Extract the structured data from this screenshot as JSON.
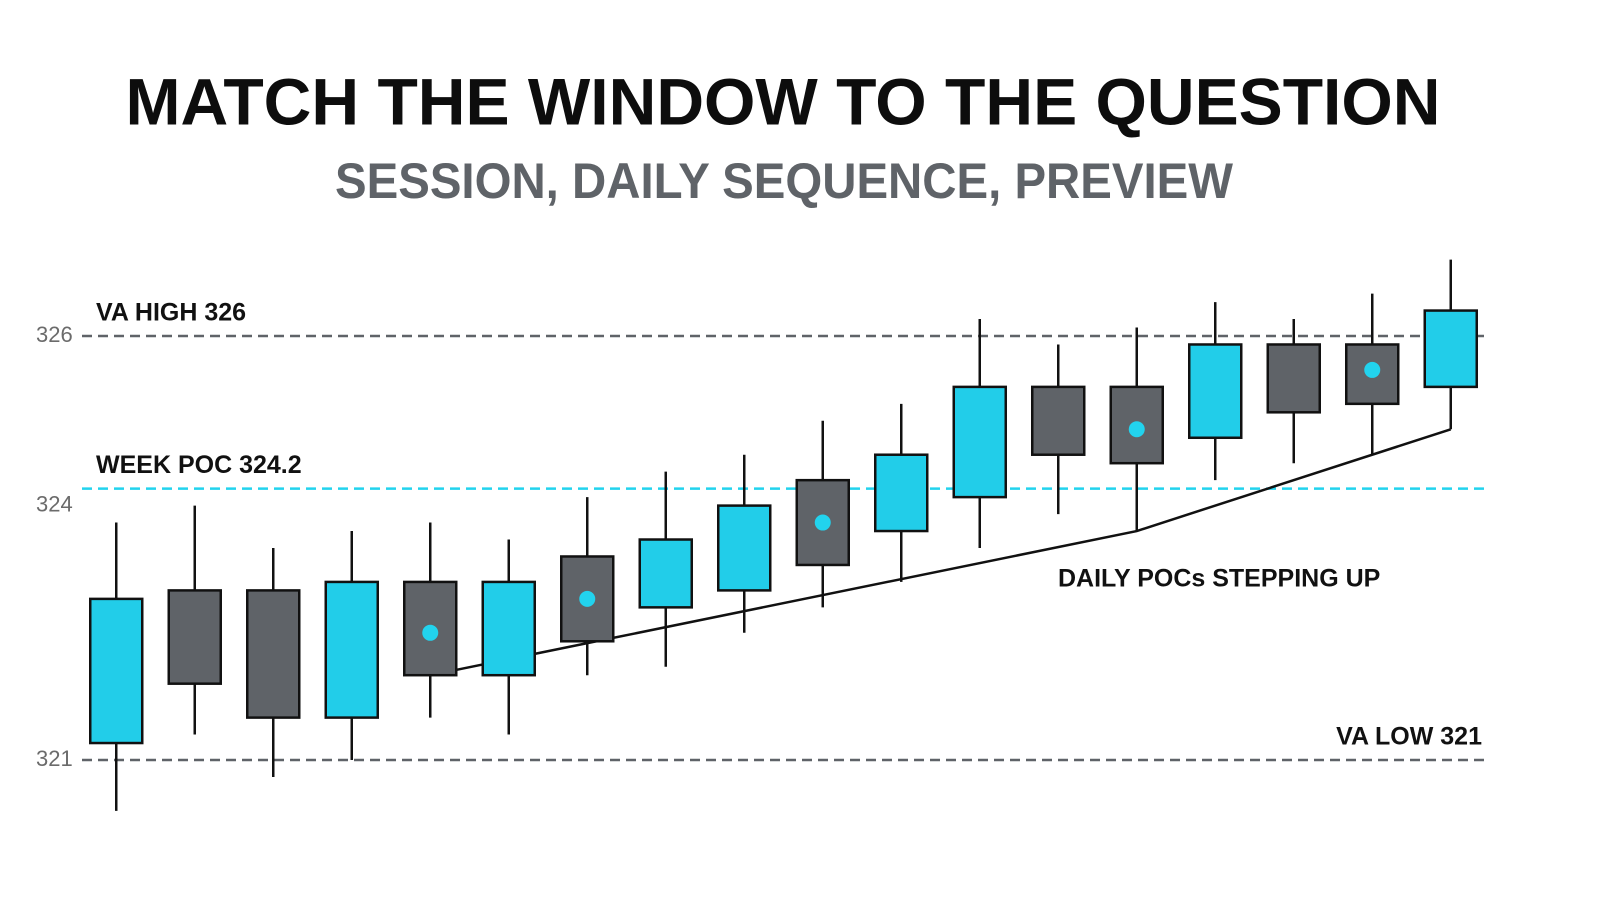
{
  "chart_data": {
    "type": "candlestick",
    "title": "MATCH THE WINDOW TO THE QUESTION",
    "subtitle": "SESSION, DAILY SEQUENCE, PREVIEW",
    "categories": [
      null,
      null,
      null,
      null,
      null,
      null,
      null,
      null,
      null,
      null,
      null,
      null,
      null,
      null,
      null,
      null,
      null,
      null
    ],
    "open": [
      321.2,
      323.0,
      323.0,
      321.5,
      323.1,
      322.0,
      323.4,
      322.8,
      323.0,
      324.3,
      323.7,
      324.1,
      325.4,
      325.4,
      324.8,
      325.9,
      325.9,
      325.4
    ],
    "high": [
      323.8,
      324.0,
      323.5,
      323.7,
      323.8,
      323.6,
      324.1,
      324.4,
      324.6,
      325.0,
      325.2,
      326.2,
      325.9,
      326.1,
      326.4,
      326.2,
      326.5,
      326.9
    ],
    "low": [
      320.4,
      321.3,
      320.8,
      321.0,
      321.5,
      321.3,
      322.0,
      322.1,
      322.5,
      322.8,
      323.1,
      323.5,
      323.9,
      323.7,
      324.3,
      324.5,
      324.6,
      324.9
    ],
    "close": [
      322.9,
      321.9,
      321.5,
      323.1,
      322.0,
      323.1,
      322.4,
      323.6,
      324.0,
      323.3,
      324.6,
      325.4,
      324.6,
      324.5,
      325.9,
      325.1,
      325.2,
      326.3
    ],
    "poc": [
      null,
      null,
      null,
      null,
      322.5,
      null,
      322.9,
      null,
      null,
      323.8,
      null,
      null,
      null,
      324.9,
      null,
      null,
      325.6,
      null
    ],
    "up_color": "#22cde9",
    "down_color": "#5f6368",
    "poc_color": "#22d3ee",
    "ylim": [
      320,
      327
    ],
    "yticks": [
      321,
      324,
      326
    ],
    "levels": [
      {
        "label": "VA HIGH 326",
        "value": 326,
        "color": "#5f6368"
      },
      {
        "label": "WEEK POC 324.2",
        "value": 324.2,
        "color": "#22d3ee"
      },
      {
        "label": "VA LOW 321",
        "value": 321,
        "color": "#5f6368"
      }
    ],
    "trendline": {
      "label": "DAILY POCs STEPPING UP",
      "x": [
        4,
        13,
        17
      ],
      "values": [
        322.0,
        323.7,
        324.9
      ]
    }
  }
}
